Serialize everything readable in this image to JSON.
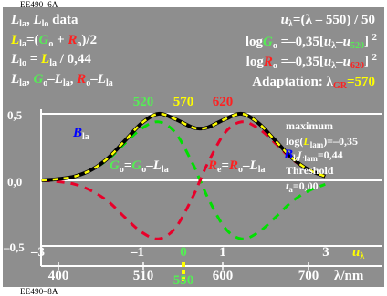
{
  "codes": {
    "top": "EE490–6A",
    "bottom": "EE490–8A"
  },
  "colors": {
    "panel": "#8e8e8e",
    "white": "#ffffff",
    "yellow": "#ffff00",
    "green": "#00e000",
    "red": "#e8002a",
    "blue": "#0000ff",
    "label_green": "#55ee55",
    "label_red": "#ff2020"
  },
  "header": {
    "left": {
      "line1": {
        "L": "L",
        "sub1": "la",
        "sep": ", ",
        "L2": "L",
        "sub2": "lo",
        "rest": " data"
      },
      "line2": {
        "L": "L",
        "sub": "la",
        "eq": "=(",
        "G": "G",
        "sG": "o",
        "plus": " + ",
        "R": "R",
        "sR": "o",
        "end": ")/2"
      },
      "line3": {
        "L": "L",
        "sub": "lo",
        "eq": " = ",
        "L2": "L",
        "sub2": "la",
        "end": " / 0,44"
      },
      "line4": {
        "L": "L",
        "sub": "la",
        "c1": ", ",
        "G": "G",
        "sG": "o",
        "m1": "–",
        "L2": "L",
        "s2": "la",
        "c2": ", ",
        "R": "R",
        "sR": "o",
        "m2": "–",
        "L3": "L",
        "s3": "la"
      }
    },
    "right": {
      "line1": {
        "u": "u",
        "sub": "λ",
        "rest": "=(λ – 550) / 50"
      },
      "line2": {
        "log": "log",
        "G": "G",
        "sG": "o",
        "eq": " =–0,35[",
        "u": "u",
        "su": "λ",
        "m": "–",
        "u2": "u",
        "su2": "520",
        "end": "]",
        "sup": "2"
      },
      "line3": {
        "log": "log",
        "R": "R",
        "sR": "o",
        "eq": " =–0,35[",
        "u": "u",
        "su": "λ",
        "m": "–",
        "u2": "u",
        "su2": "620",
        "end": "]",
        "sup": "2"
      },
      "line4": {
        "label": "Adaptation: λ",
        "sub": "GR",
        "end": "=570"
      }
    }
  },
  "peaks": {
    "p520": "520",
    "p570": "570",
    "p620": "620"
  },
  "curve_labels": {
    "B": "B",
    "B_sub": "la",
    "G": "G",
    "G_sub": "o",
    "G_eq": "=",
    "G_eq2": "G",
    "G_sub2": "o",
    "G_m": "–",
    "G_L": "L",
    "G_Lsub": "la",
    "R": "R",
    "R_sub": "e",
    "R_eq": "=",
    "R_eq2": "R",
    "R_sub2": "o",
    "R_m": "–",
    "R_L": "L",
    "R_Lsub": "la",
    "B2": "B",
    "B2_sub": "lo"
  },
  "info": {
    "line1": "maximum",
    "line2": {
      "pre": "log(",
      "L": "L",
      "sub": "lam",
      "end": ")=–0,35"
    },
    "line3": {
      "L": "L",
      "sub": "lam",
      "end": "=0,44"
    },
    "line4": "Threshold",
    "line5": {
      "t": "t",
      "sub": "a",
      "end": "=0,00"
    }
  },
  "y_ticks": [
    "0,5",
    "0,0",
    "–0,5"
  ],
  "u_ticks": [
    "–3",
    "–1",
    "0",
    "1",
    "3"
  ],
  "u_axis_label": {
    "u": "u",
    "sub": "λ"
  },
  "x_ticks": [
    "400",
    "510",
    "550",
    "600",
    "700"
  ],
  "x_axis_label": "λ/nm",
  "chart_data": {
    "type": "line",
    "x_range": [
      380,
      720
    ],
    "ylim": [
      -0.6,
      0.6
    ],
    "series": [
      {
        "color": "#000000",
        "style": "solid-black-yellow",
        "x": [
          380,
          400,
          420,
          440,
          460,
          480,
          500,
          520,
          540,
          560,
          570,
          580,
          600,
          620,
          640,
          660,
          680,
          700,
          720
        ],
        "y": [
          0.0,
          0.01,
          0.03,
          0.08,
          0.17,
          0.3,
          0.43,
          0.5,
          0.46,
          0.4,
          0.39,
          0.4,
          0.46,
          0.5,
          0.43,
          0.3,
          0.17,
          0.08,
          0.03
        ]
      },
      {
        "color": "#e8002a",
        "style": "dashed",
        "x": [
          380,
          400,
          420,
          440,
          460,
          480,
          500,
          520,
          540,
          560,
          570,
          580,
          600,
          620,
          640,
          660,
          680,
          700,
          720
        ],
        "y": [
          0.0,
          -0.01,
          -0.03,
          -0.08,
          -0.16,
          -0.28,
          -0.39,
          -0.44,
          -0.36,
          -0.14,
          0.0,
          0.14,
          0.36,
          0.44,
          0.39,
          0.28,
          0.16,
          0.08,
          0.03
        ]
      },
      {
        "color": "#00e000",
        "style": "dashed",
        "x": [
          380,
          400,
          420,
          440,
          460,
          480,
          500,
          520,
          540,
          560,
          570,
          580,
          600,
          620,
          640,
          660,
          680,
          700,
          720
        ],
        "y": [
          0.0,
          0.01,
          0.03,
          0.08,
          0.16,
          0.28,
          0.39,
          0.44,
          0.36,
          0.14,
          0.0,
          -0.14,
          -0.36,
          -0.44,
          -0.39,
          -0.28,
          -0.16,
          -0.08,
          -0.03
        ]
      }
    ]
  }
}
